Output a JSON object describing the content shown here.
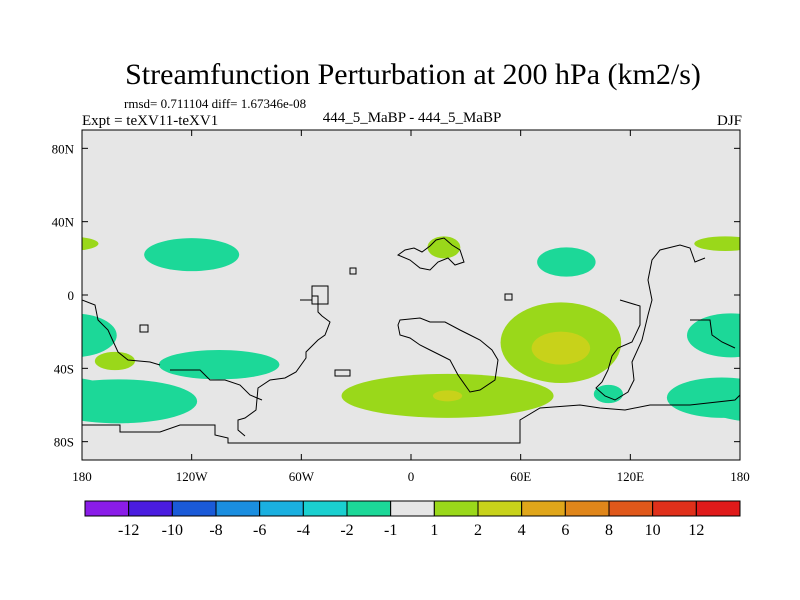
{
  "chart_data": {
    "type": "heatmap",
    "title": "Streamfunction Perturbation at 200 hPa (km2/s)",
    "left_subtitle": "Expt = teXV11-teXV1",
    "stats_text": "rmsd= 0.711104  diff= 1.67346e-08",
    "center_subtitle": "444_5_MaBP - 444_5_MaBP",
    "right_subtitle": "DJF",
    "lon_range": [
      -180,
      180
    ],
    "lat_range": [
      -90,
      90
    ],
    "x_ticks": [
      {
        "lon": -180,
        "label": "180"
      },
      {
        "lon": -120,
        "label": "120W"
      },
      {
        "lon": -60,
        "label": "60W"
      },
      {
        "lon": 0,
        "label": "0"
      },
      {
        "lon": 60,
        "label": "60E"
      },
      {
        "lon": 120,
        "label": "120E"
      },
      {
        "lon": 180,
        "label": "180"
      }
    ],
    "y_ticks": [
      {
        "lat": 80,
        "label": "80N"
      },
      {
        "lat": 40,
        "label": "40N"
      },
      {
        "lat": 0,
        "label": "0"
      },
      {
        "lat": -40,
        "label": "40S"
      },
      {
        "lat": -80,
        "label": "80S"
      }
    ],
    "colorbar": {
      "boundaries": [
        "-12",
        "-10",
        "-8",
        "-6",
        "-4",
        "-2",
        "-1",
        "1",
        "2",
        "4",
        "6",
        "8",
        "10",
        "12"
      ],
      "colors": [
        "#8a1ce8",
        "#4a1ce0",
        "#1a5ad8",
        "#1a8ee0",
        "#1ab0e0",
        "#1ad0d0",
        "#1cd898",
        "#e6e6e6",
        "#9ad81a",
        "#c8d21a",
        "#e0a61a",
        "#e0861a",
        "#e0581a",
        "#e0301a",
        "#e01a1a"
      ]
    },
    "background_color": "#e6e6e6",
    "contour_regions": [
      {
        "name": "north-pacific-negative",
        "value": -1.5,
        "lon": -120,
        "lat": 22,
        "rlon": 26,
        "rlat": 9
      },
      {
        "name": "south-pacific-negative",
        "value": -1.5,
        "lon": -105,
        "lat": -38,
        "rlon": 33,
        "rlat": 8
      },
      {
        "name": "southern-ocean-negative",
        "value": -1.5,
        "lon": -160,
        "lat": -58,
        "rlon": 43,
        "rlat": 12
      },
      {
        "name": "southern-ocean-negative-core",
        "value": -3,
        "lon": -175,
        "lat": -57,
        "rlon": 8,
        "rlat": 3
      },
      {
        "name": "central-pacific-negative",
        "value": -1.5,
        "lon": 175,
        "lat": -22,
        "rlon": 24,
        "rlat": 12
      },
      {
        "name": "east-pacific-negative",
        "value": -1.5,
        "lon": 170,
        "lat": -56,
        "rlon": 30,
        "rlat": 11
      },
      {
        "name": "asia-negative",
        "value": -1.5,
        "lon": 85,
        "lat": 18,
        "rlon": 16,
        "rlat": 8
      },
      {
        "name": "indian-ocean-south-negative",
        "value": -1.5,
        "lon": 108,
        "lat": -54,
        "rlon": 8,
        "rlat": 5
      },
      {
        "name": "mediterranean-positive",
        "value": 1.5,
        "lon": 18,
        "lat": 26,
        "rlon": 9,
        "rlat": 6
      },
      {
        "name": "japan-positive",
        "value": 1.5,
        "lon": 172,
        "lat": 28,
        "rlon": 17,
        "rlat": 4
      },
      {
        "name": "indian-ocean-positive",
        "value": 1.5,
        "lon": 82,
        "lat": -26,
        "rlon": 33,
        "rlat": 22
      },
      {
        "name": "indian-ocean-positive-core",
        "value": 2.5,
        "lon": 82,
        "lat": -29,
        "rlon": 16,
        "rlat": 9
      },
      {
        "name": "south-atlantic-positive",
        "value": 1.5,
        "lon": 20,
        "lat": -55,
        "rlon": 58,
        "rlat": 12
      },
      {
        "name": "south-atlantic-positive-core",
        "value": 2.5,
        "lon": 20,
        "lat": -55,
        "rlon": 8,
        "rlat": 3
      },
      {
        "name": "south-america-west-positive",
        "value": 1.5,
        "lon": -162,
        "lat": -36,
        "rlon": 11,
        "rlat": 5
      }
    ]
  }
}
